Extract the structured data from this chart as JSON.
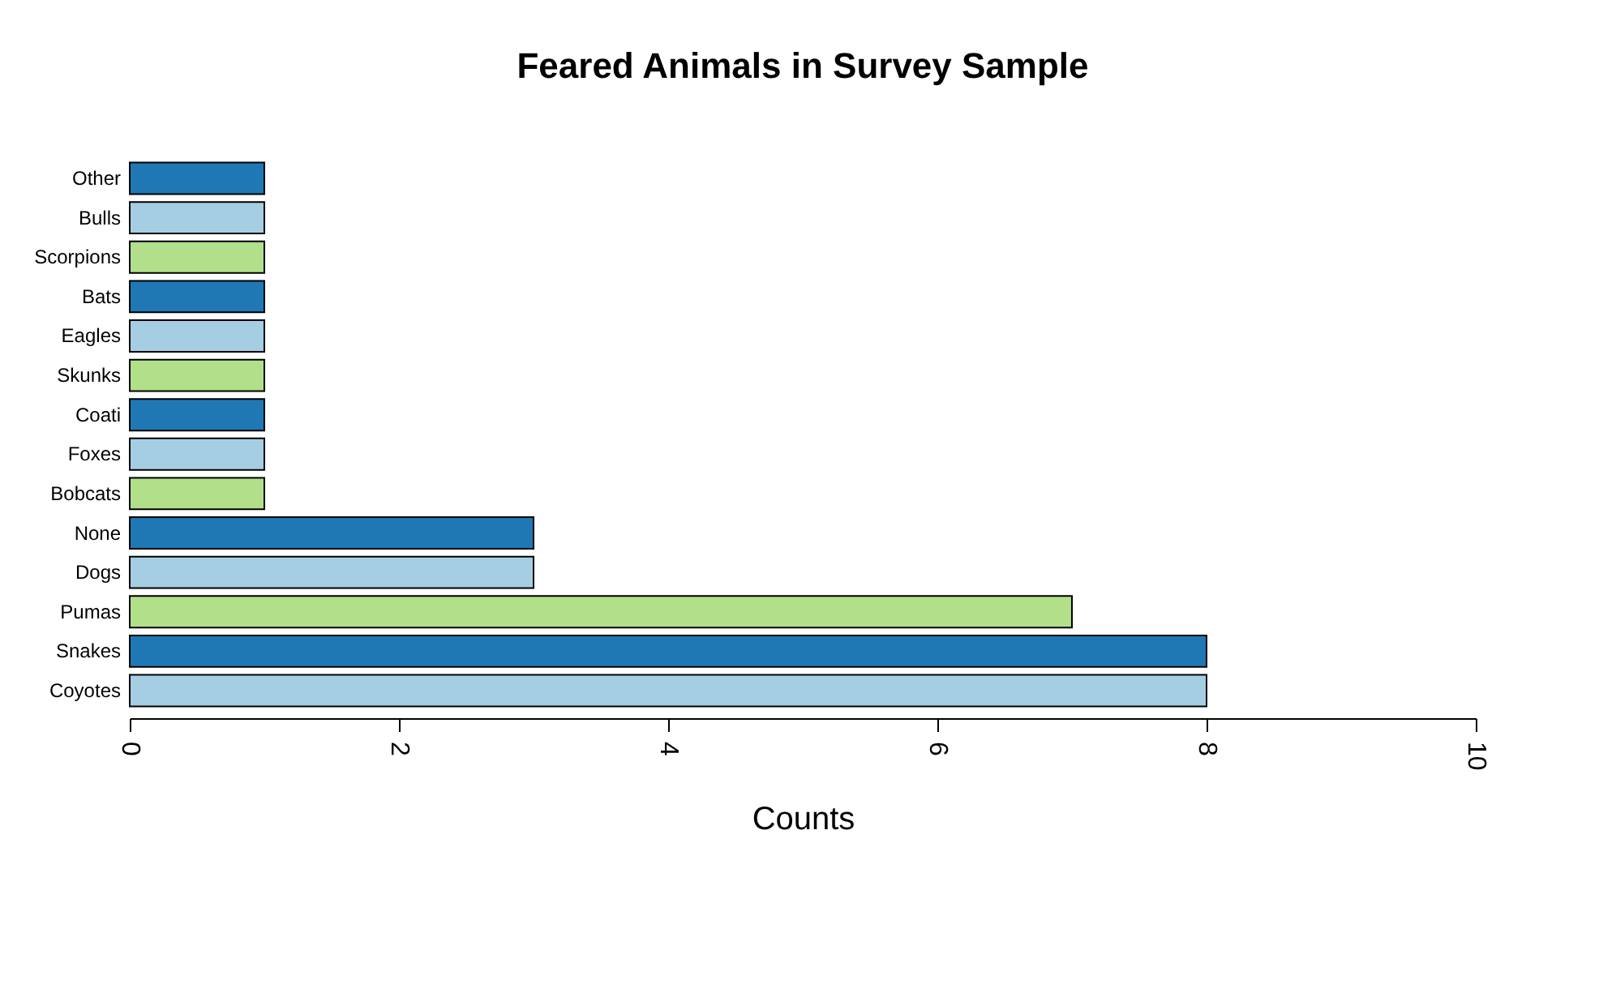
{
  "chart_data": {
    "type": "bar",
    "orientation": "horizontal",
    "title": "Feared Animals in Survey Sample",
    "xlabel": "Counts",
    "categories": [
      "Other",
      "Bulls",
      "Scorpions",
      "Bats",
      "Eagles",
      "Skunks",
      "Coati",
      "Foxes",
      "Bobcats",
      "None",
      "Dogs",
      "Pumas",
      "Snakes",
      "Coyotes"
    ],
    "values": [
      1,
      1,
      1,
      1,
      1,
      1,
      1,
      1,
      1,
      3,
      3,
      7,
      8,
      8
    ],
    "colors": [
      "#1f78b4",
      "#a6cee3",
      "#b2df8a",
      "#1f78b4",
      "#a6cee3",
      "#b2df8a",
      "#1f78b4",
      "#a6cee3",
      "#b2df8a",
      "#1f78b4",
      "#a6cee3",
      "#b2df8a",
      "#1f78b4",
      "#a6cee3"
    ],
    "xlim": [
      0,
      10
    ],
    "xticks": [
      0,
      2,
      4,
      6,
      8,
      10
    ],
    "grid": false
  }
}
